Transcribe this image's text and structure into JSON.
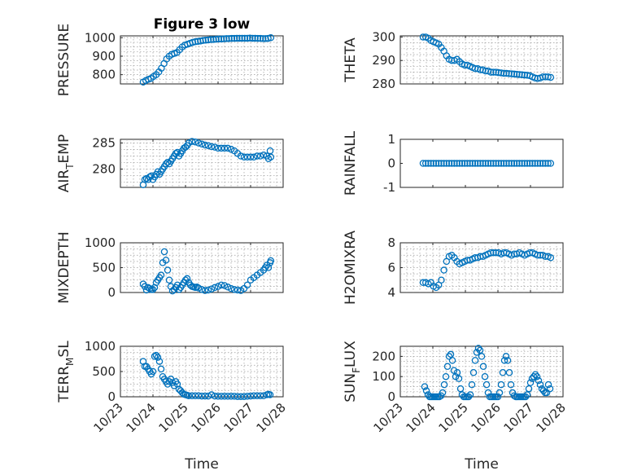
{
  "chart_data": [
    {
      "type": "scatter",
      "title": "Figure 3 low",
      "ylabel": "PRESSURE",
      "ylabel_sub": "",
      "ylabel_rest": "",
      "ylim": [
        750,
        1010
      ],
      "yticks": [
        800,
        900,
        1000
      ],
      "xlim": [
        0,
        5
      ],
      "xtick_labels": [],
      "xlabel": "",
      "grid": true,
      "series": [
        {
          "x": [
            0.7,
            0.78,
            0.86,
            0.94,
            1.02,
            1.1,
            1.18,
            1.26,
            1.34,
            1.42,
            1.5,
            1.58,
            1.66,
            1.74,
            1.82,
            1.9,
            1.98,
            2.06,
            2.14,
            2.22,
            2.3,
            2.38,
            2.46,
            2.54,
            2.62,
            2.7,
            2.78,
            2.86,
            2.94,
            3.02,
            3.1,
            3.18,
            3.26,
            3.34,
            3.42,
            3.5,
            3.58,
            3.66,
            3.74,
            3.82,
            3.9,
            3.98,
            4.06,
            4.14,
            4.22,
            4.3,
            4.38,
            4.46,
            4.54,
            4.62
          ],
          "y": [
            760,
            768,
            775,
            780,
            790,
            800,
            815,
            835,
            860,
            885,
            900,
            910,
            915,
            920,
            935,
            950,
            960,
            965,
            970,
            975,
            978,
            980,
            982,
            985,
            987,
            988,
            990,
            990,
            992,
            993,
            993,
            994,
            995,
            995,
            996,
            996,
            997,
            997,
            997,
            997,
            997,
            998,
            997,
            997,
            996,
            996,
            995,
            995,
            996,
            1000
          ]
        }
      ]
    },
    {
      "type": "scatter",
      "title": "",
      "ylabel": "THETA",
      "ylabel_sub": "",
      "ylabel_rest": "",
      "ylim": [
        280,
        300.5
      ],
      "yticks": [
        280,
        290,
        300
      ],
      "xlim": [
        0,
        5
      ],
      "xtick_labels": [],
      "xlabel": "",
      "grid": true,
      "series": [
        {
          "x": [
            0.7,
            0.78,
            0.86,
            0.94,
            1.02,
            1.1,
            1.18,
            1.26,
            1.34,
            1.42,
            1.5,
            1.58,
            1.66,
            1.74,
            1.82,
            1.9,
            1.98,
            2.06,
            2.14,
            2.22,
            2.3,
            2.38,
            2.46,
            2.54,
            2.62,
            2.7,
            2.78,
            2.86,
            2.94,
            3.02,
            3.1,
            3.18,
            3.26,
            3.34,
            3.42,
            3.5,
            3.58,
            3.66,
            3.74,
            3.82,
            3.9,
            3.98,
            4.06,
            4.14,
            4.22,
            4.3,
            4.38,
            4.46,
            4.54,
            4.62
          ],
          "y": [
            300,
            300,
            299.5,
            298.5,
            298,
            297.5,
            297,
            295.5,
            294,
            292,
            290.5,
            290,
            290,
            290.5,
            289.5,
            288.5,
            288,
            288,
            287.5,
            287,
            286.5,
            286.5,
            286,
            286,
            285.5,
            285.5,
            285,
            285,
            285,
            284.8,
            284.7,
            284.5,
            284.5,
            284.4,
            284.3,
            284.2,
            284.1,
            284,
            283.9,
            283.8,
            283.7,
            283.5,
            283,
            282.5,
            282.3,
            282.5,
            283,
            283,
            283,
            282.8
          ]
        }
      ]
    },
    {
      "type": "scatter",
      "title": "",
      "ylabel": "AIR",
      "ylabel_sub": "T",
      "ylabel_rest": "EMP",
      "ylim": [
        276.5,
        285.7
      ],
      "yticks": [
        280,
        285
      ],
      "xlim": [
        0,
        5
      ],
      "xtick_labels": [],
      "xlabel": "",
      "grid": true,
      "series": [
        {
          "x": [
            0.7,
            0.75,
            0.8,
            0.85,
            0.9,
            0.95,
            1.0,
            1.05,
            1.1,
            1.15,
            1.2,
            1.25,
            1.3,
            1.35,
            1.4,
            1.45,
            1.5,
            1.55,
            1.6,
            1.65,
            1.7,
            1.75,
            1.8,
            1.85,
            1.9,
            1.95,
            2.0,
            2.05,
            2.1,
            2.2,
            2.3,
            2.4,
            2.5,
            2.6,
            2.7,
            2.8,
            2.9,
            3.0,
            3.1,
            3.2,
            3.3,
            3.4,
            3.5,
            3.6,
            3.7,
            3.8,
            3.9,
            4.0,
            4.1,
            4.2,
            4.3,
            4.4,
            4.5,
            4.55,
            4.6,
            4.62
          ],
          "y": [
            277,
            278,
            278.2,
            278,
            278.5,
            278.7,
            278,
            278.5,
            279,
            279.5,
            279,
            279.5,
            280,
            280.5,
            281,
            281.3,
            281,
            281.5,
            282,
            282.5,
            283,
            283.2,
            282.5,
            283,
            283.5,
            284,
            284.2,
            284.5,
            285,
            285.3,
            285.2,
            285,
            284.8,
            284.6,
            284.5,
            284.3,
            284.2,
            284,
            284,
            284,
            284,
            283.8,
            283.5,
            283,
            282.5,
            282.3,
            282.3,
            282.3,
            282.3,
            282.5,
            282.5,
            282.7,
            282.5,
            282,
            283.5,
            282.3
          ]
        }
      ]
    },
    {
      "type": "scatter",
      "title": "",
      "ylabel": "RAINFALL",
      "ylabel_sub": "",
      "ylabel_rest": "",
      "ylim": [
        -1,
        1
      ],
      "yticks": [
        -1,
        0,
        1
      ],
      "xlim": [
        0,
        5
      ],
      "xtick_labels": [],
      "xlabel": "",
      "grid": false,
      "series": [
        {
          "x": [
            0.7,
            0.78,
            0.86,
            0.94,
            1.02,
            1.1,
            1.18,
            1.26,
            1.34,
            1.42,
            1.5,
            1.58,
            1.66,
            1.74,
            1.82,
            1.9,
            1.98,
            2.06,
            2.14,
            2.22,
            2.3,
            2.38,
            2.46,
            2.54,
            2.62,
            2.7,
            2.78,
            2.86,
            2.94,
            3.02,
            3.1,
            3.18,
            3.26,
            3.34,
            3.42,
            3.5,
            3.58,
            3.66,
            3.74,
            3.82,
            3.9,
            3.98,
            4.06,
            4.14,
            4.22,
            4.3,
            4.38,
            4.46,
            4.54,
            4.62
          ],
          "y": [
            0,
            0,
            0,
            0,
            0,
            0,
            0,
            0,
            0,
            0,
            0,
            0,
            0,
            0,
            0,
            0,
            0,
            0,
            0,
            0,
            0,
            0,
            0,
            0,
            0,
            0,
            0,
            0,
            0,
            0,
            0,
            0,
            0,
            0,
            0,
            0,
            0,
            0,
            0,
            0,
            0,
            0,
            0,
            0,
            0,
            0,
            0,
            0,
            0,
            0
          ]
        }
      ]
    },
    {
      "type": "scatter",
      "title": "",
      "ylabel": "MIXDEPTH",
      "ylabel_sub": "",
      "ylabel_rest": "",
      "ylim": [
        0,
        1000
      ],
      "yticks": [
        0,
        500,
        1000
      ],
      "xlim": [
        0,
        5
      ],
      "xtick_labels": [],
      "xlabel": "",
      "grid": true,
      "series": [
        {
          "x": [
            0.7,
            0.75,
            0.8,
            0.85,
            0.9,
            0.95,
            1.0,
            1.05,
            1.1,
            1.15,
            1.2,
            1.25,
            1.3,
            1.35,
            1.4,
            1.45,
            1.5,
            1.55,
            1.6,
            1.65,
            1.7,
            1.75,
            1.8,
            1.85,
            1.9,
            1.95,
            2.0,
            2.05,
            2.1,
            2.15,
            2.2,
            2.25,
            2.3,
            2.35,
            2.4,
            2.5,
            2.6,
            2.7,
            2.8,
            2.9,
            3.0,
            3.1,
            3.2,
            3.3,
            3.4,
            3.5,
            3.6,
            3.7,
            3.8,
            3.9,
            4.0,
            4.1,
            4.2,
            4.3,
            4.4,
            4.45,
            4.5,
            4.55,
            4.6,
            4.62
          ],
          "y": [
            170,
            120,
            50,
            100,
            80,
            60,
            60,
            100,
            200,
            250,
            300,
            350,
            600,
            820,
            650,
            450,
            250,
            120,
            30,
            60,
            100,
            150,
            60,
            100,
            150,
            200,
            250,
            280,
            200,
            150,
            120,
            110,
            100,
            110,
            90,
            60,
            40,
            50,
            70,
            100,
            120,
            150,
            140,
            110,
            80,
            60,
            50,
            40,
            80,
            150,
            250,
            300,
            350,
            400,
            450,
            500,
            550,
            500,
            600,
            640
          ]
        }
      ]
    },
    {
      "type": "scatter",
      "title": "",
      "ylabel": "H2OMIXRA",
      "ylabel_sub": "",
      "ylabel_rest": "",
      "ylim": [
        4,
        8
      ],
      "yticks": [
        4,
        6,
        8
      ],
      "xlim": [
        0,
        5
      ],
      "xtick_labels": [],
      "xlabel": "",
      "grid": true,
      "series": [
        {
          "x": [
            0.7,
            0.78,
            0.86,
            0.94,
            1.02,
            1.1,
            1.18,
            1.26,
            1.34,
            1.42,
            1.5,
            1.58,
            1.66,
            1.74,
            1.82,
            1.9,
            1.98,
            2.06,
            2.14,
            2.22,
            2.3,
            2.38,
            2.46,
            2.54,
            2.62,
            2.7,
            2.78,
            2.86,
            2.94,
            3.02,
            3.1,
            3.18,
            3.26,
            3.34,
            3.42,
            3.5,
            3.58,
            3.66,
            3.74,
            3.82,
            3.9,
            3.98,
            4.06,
            4.14,
            4.22,
            4.3,
            4.38,
            4.46,
            4.54,
            4.62
          ],
          "y": [
            4.8,
            4.8,
            4.7,
            4.8,
            4.5,
            4.4,
            4.6,
            5.0,
            5.8,
            6.5,
            6.9,
            7.0,
            6.8,
            6.5,
            6.3,
            6.4,
            6.5,
            6.6,
            6.6,
            6.7,
            6.8,
            6.8,
            6.9,
            6.9,
            7.0,
            7.1,
            7.2,
            7.2,
            7.2,
            7.2,
            7.1,
            7.2,
            7.2,
            7.1,
            7.0,
            7.1,
            7.1,
            7.2,
            7.1,
            7.0,
            7.1,
            7.2,
            7.2,
            7.1,
            7.0,
            7.0,
            7.0,
            6.9,
            6.9,
            6.8
          ]
        }
      ]
    },
    {
      "type": "scatter",
      "title": "",
      "ylabel": "TERR",
      "ylabel_sub": "M",
      "ylabel_rest": "SL",
      "ylim": [
        0,
        1000
      ],
      "yticks": [
        0,
        500,
        1000
      ],
      "xlim": [
        0,
        5
      ],
      "xtick_labels": [
        "10/23",
        "10/24",
        "10/25",
        "10/26",
        "10/27",
        "10/28"
      ],
      "xlabel": "Time",
      "grid": true,
      "series": [
        {
          "x": [
            0.7,
            0.75,
            0.8,
            0.85,
            0.9,
            0.95,
            1.0,
            1.05,
            1.1,
            1.15,
            1.2,
            1.25,
            1.3,
            1.35,
            1.4,
            1.45,
            1.5,
            1.55,
            1.6,
            1.65,
            1.7,
            1.75,
            1.8,
            1.85,
            1.9,
            1.95,
            2.0,
            2.05,
            2.1,
            2.2,
            2.3,
            2.4,
            2.5,
            2.6,
            2.7,
            2.8,
            2.9,
            3.0,
            3.1,
            3.2,
            3.3,
            3.4,
            3.5,
            3.6,
            3.7,
            3.8,
            3.9,
            4.0,
            4.1,
            4.2,
            4.3,
            4.4,
            4.5,
            4.55,
            4.6
          ],
          "y": [
            700,
            600,
            600,
            550,
            500,
            450,
            500,
            800,
            820,
            780,
            700,
            550,
            400,
            350,
            300,
            250,
            300,
            350,
            280,
            220,
            300,
            250,
            150,
            120,
            80,
            50,
            40,
            30,
            20,
            20,
            20,
            20,
            15,
            15,
            15,
            40,
            15,
            10,
            10,
            10,
            10,
            10,
            10,
            5,
            5,
            5,
            10,
            15,
            20,
            20,
            20,
            20,
            40,
            50,
            40
          ]
        }
      ]
    },
    {
      "type": "scatter",
      "title": "",
      "ylabel": "SUN",
      "ylabel_sub": "F",
      "ylabel_rest": "LUX",
      "ylim": [
        0,
        250
      ],
      "yticks": [
        0,
        100,
        200
      ],
      "xlim": [
        0,
        5
      ],
      "xtick_labels": [
        "10/23",
        "10/24",
        "10/25",
        "10/26",
        "10/27",
        "10/28"
      ],
      "xlabel": "Time",
      "grid": true,
      "series": [
        {
          "x": [
            0.75,
            0.8,
            0.85,
            0.9,
            0.95,
            1.0,
            1.05,
            1.1,
            1.15,
            1.2,
            1.25,
            1.3,
            1.35,
            1.4,
            1.45,
            1.5,
            1.55,
            1.6,
            1.65,
            1.7,
            1.75,
            1.8,
            1.85,
            1.9,
            1.95,
            2.0,
            2.05,
            2.1,
            2.15,
            2.2,
            2.25,
            2.3,
            2.35,
            2.4,
            2.45,
            2.5,
            2.55,
            2.6,
            2.65,
            2.7,
            2.75,
            2.8,
            2.85,
            2.9,
            2.95,
            3.0,
            3.05,
            3.1,
            3.15,
            3.2,
            3.25,
            3.3,
            3.35,
            3.4,
            3.45,
            3.5,
            3.55,
            3.6,
            3.65,
            3.7,
            3.75,
            3.8,
            3.85,
            3.9,
            3.95,
            4.0,
            4.05,
            4.1,
            4.15,
            4.2,
            4.25,
            4.3,
            4.35,
            4.4,
            4.45,
            4.5,
            4.55,
            4.6
          ],
          "y": [
            50,
            30,
            10,
            0,
            0,
            0,
            0,
            0,
            0,
            0,
            5,
            20,
            60,
            100,
            150,
            200,
            210,
            180,
            130,
            100,
            120,
            90,
            40,
            10,
            0,
            0,
            0,
            0,
            10,
            60,
            120,
            180,
            220,
            240,
            230,
            200,
            150,
            100,
            60,
            20,
            0,
            0,
            0,
            0,
            0,
            0,
            20,
            60,
            120,
            180,
            200,
            180,
            120,
            60,
            20,
            5,
            0,
            0,
            0,
            0,
            0,
            0,
            0,
            10,
            40,
            70,
            90,
            100,
            110,
            100,
            80,
            60,
            40,
            30,
            20,
            20,
            60,
            40
          ]
        }
      ]
    }
  ]
}
